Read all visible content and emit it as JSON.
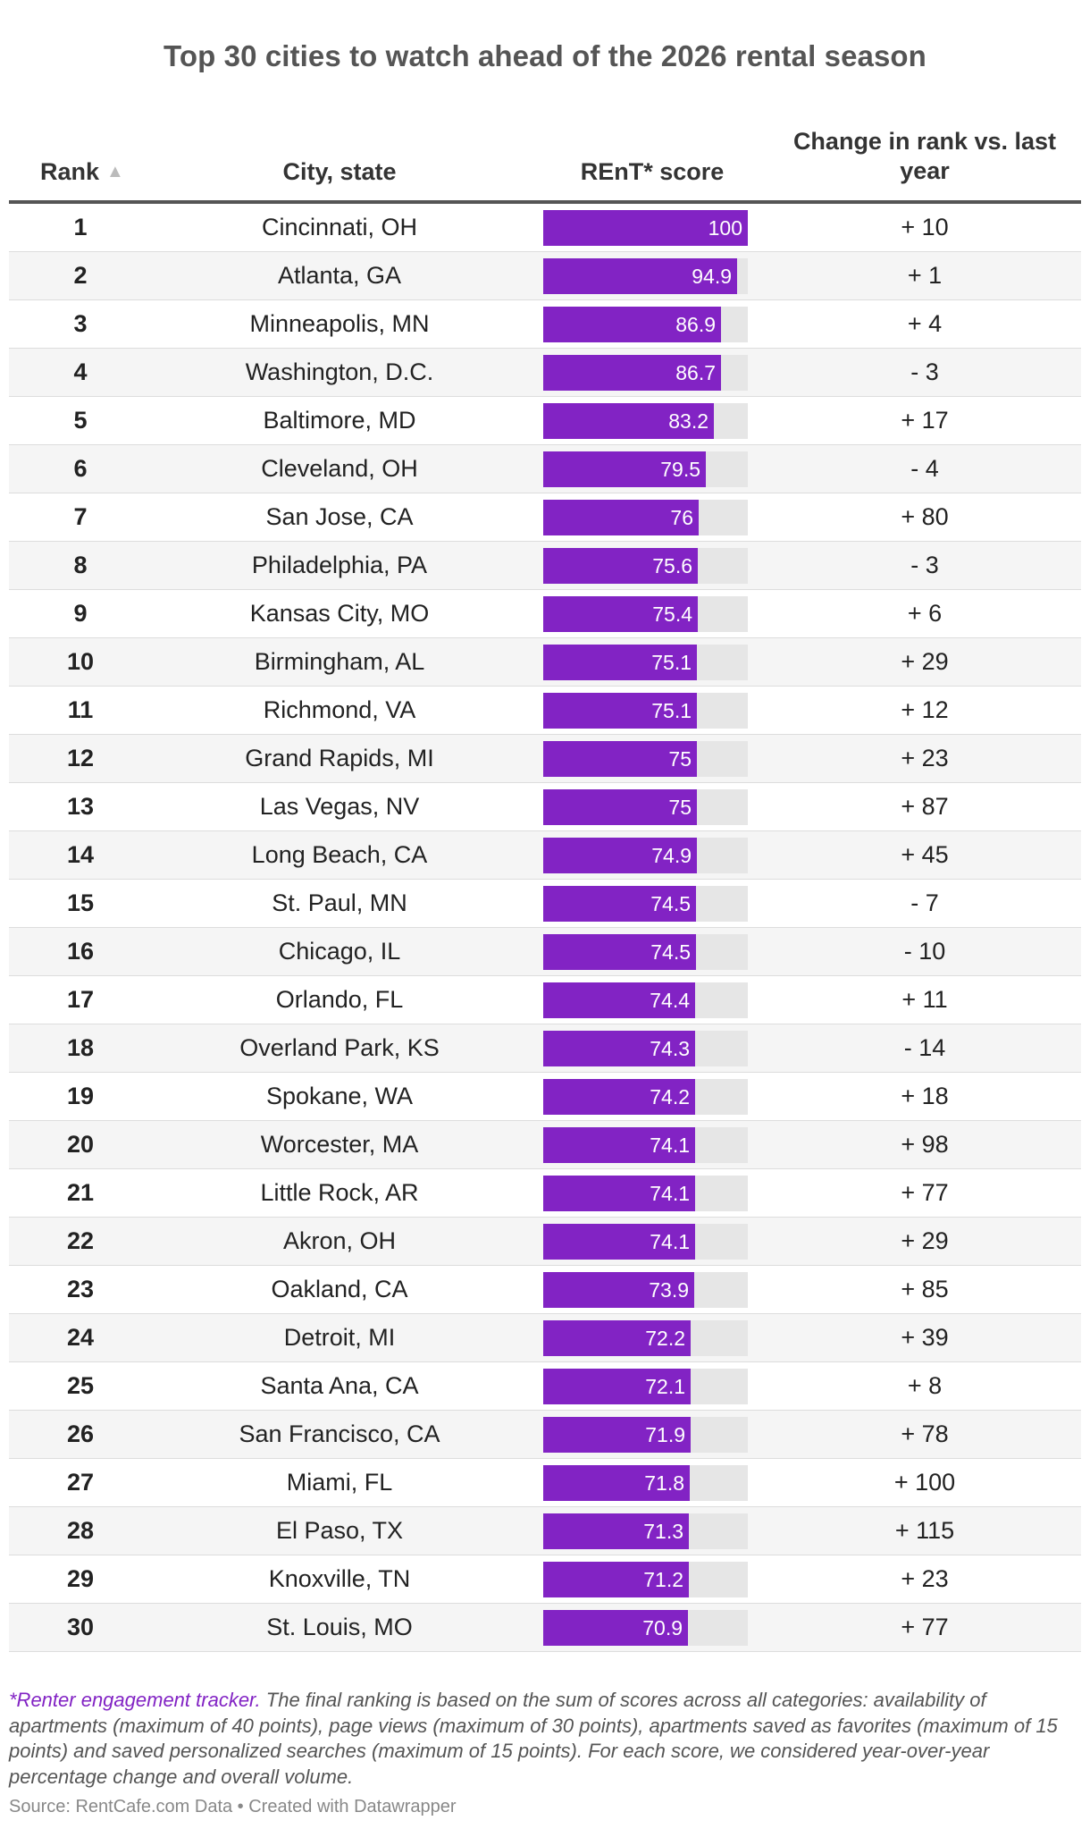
{
  "title": "Top 30 cities to watch ahead of the 2026 rental season",
  "columns": {
    "rank": "Rank",
    "city": "City, state",
    "score": "REnT* score",
    "change": "Change in rank vs. last year"
  },
  "sort_icon": "▲",
  "colors": {
    "bar": "#8223c4",
    "bar_track": "#e6e6e6",
    "note_highlight": "#8223c4"
  },
  "chart_data": {
    "type": "table",
    "title": "Top 30 cities to watch ahead of the 2026 rental season",
    "score_range": [
      0,
      100
    ],
    "rows": [
      {
        "rank": "1",
        "city": "Cincinnati, OH",
        "score": 100,
        "change": "+ 10"
      },
      {
        "rank": "2",
        "city": "Atlanta, GA",
        "score": 94.9,
        "change": "+ 1"
      },
      {
        "rank": "3",
        "city": "Minneapolis, MN",
        "score": 86.9,
        "change": "+ 4"
      },
      {
        "rank": "4",
        "city": "Washington, D.C.",
        "score": 86.7,
        "change": "- 3"
      },
      {
        "rank": "5",
        "city": "Baltimore, MD",
        "score": 83.2,
        "change": "+ 17"
      },
      {
        "rank": "6",
        "city": "Cleveland, OH",
        "score": 79.5,
        "change": "- 4"
      },
      {
        "rank": "7",
        "city": "San Jose, CA",
        "score": 76,
        "change": "+ 80"
      },
      {
        "rank": "8",
        "city": "Philadelphia, PA",
        "score": 75.6,
        "change": "- 3"
      },
      {
        "rank": "9",
        "city": "Kansas City, MO",
        "score": 75.4,
        "change": "+ 6"
      },
      {
        "rank": "10",
        "city": "Birmingham, AL",
        "score": 75.1,
        "change": "+ 29"
      },
      {
        "rank": "11",
        "city": "Richmond, VA",
        "score": 75.1,
        "change": "+ 12"
      },
      {
        "rank": "12",
        "city": "Grand Rapids, MI",
        "score": 75,
        "change": "+ 23"
      },
      {
        "rank": "13",
        "city": "Las Vegas, NV",
        "score": 75,
        "change": "+ 87"
      },
      {
        "rank": "14",
        "city": "Long Beach, CA",
        "score": 74.9,
        "change": "+ 45"
      },
      {
        "rank": "15",
        "city": "St. Paul, MN",
        "score": 74.5,
        "change": "- 7"
      },
      {
        "rank": "16",
        "city": "Chicago, IL",
        "score": 74.5,
        "change": "- 10"
      },
      {
        "rank": "17",
        "city": "Orlando, FL",
        "score": 74.4,
        "change": "+ 11"
      },
      {
        "rank": "18",
        "city": "Overland Park, KS",
        "score": 74.3,
        "change": "- 14"
      },
      {
        "rank": "19",
        "city": "Spokane, WA",
        "score": 74.2,
        "change": "+ 18"
      },
      {
        "rank": "20",
        "city": "Worcester, MA",
        "score": 74.1,
        "change": "+ 98"
      },
      {
        "rank": "21",
        "city": "Little Rock, AR",
        "score": 74.1,
        "change": "+ 77"
      },
      {
        "rank": "22",
        "city": "Akron, OH",
        "score": 74.1,
        "change": "+ 29"
      },
      {
        "rank": "23",
        "city": "Oakland, CA",
        "score": 73.9,
        "change": "+ 85"
      },
      {
        "rank": "24",
        "city": "Detroit, MI",
        "score": 72.2,
        "change": "+ 39"
      },
      {
        "rank": "25",
        "city": "Santa Ana, CA",
        "score": 72.1,
        "change": "+ 8"
      },
      {
        "rank": "26",
        "city": "San Francisco, CA",
        "score": 71.9,
        "change": "+ 78"
      },
      {
        "rank": "27",
        "city": "Miami, FL",
        "score": 71.8,
        "change": "+ 100"
      },
      {
        "rank": "28",
        "city": "El Paso, TX",
        "score": 71.3,
        "change": "+ 115"
      },
      {
        "rank": "29",
        "city": "Knoxville, TN",
        "score": 71.2,
        "change": "+ 23"
      },
      {
        "rank": "30",
        "city": "St. Louis, MO",
        "score": 70.9,
        "change": "+ 77"
      }
    ]
  },
  "footnote": {
    "highlight": "*Renter engagement tracker.",
    "text": " The final ranking is based on the sum of scores across all categories: availability of apartments (maximum of 40 points), page views (maximum of 30 points), apartments saved as favorites (maximum of 15 points) and saved personalized searches (maximum of 15 points). For each score, we considered year-over-year percentage change and overall volume."
  },
  "source": "Source: RentCafe.com Data • Created with Datawrapper"
}
